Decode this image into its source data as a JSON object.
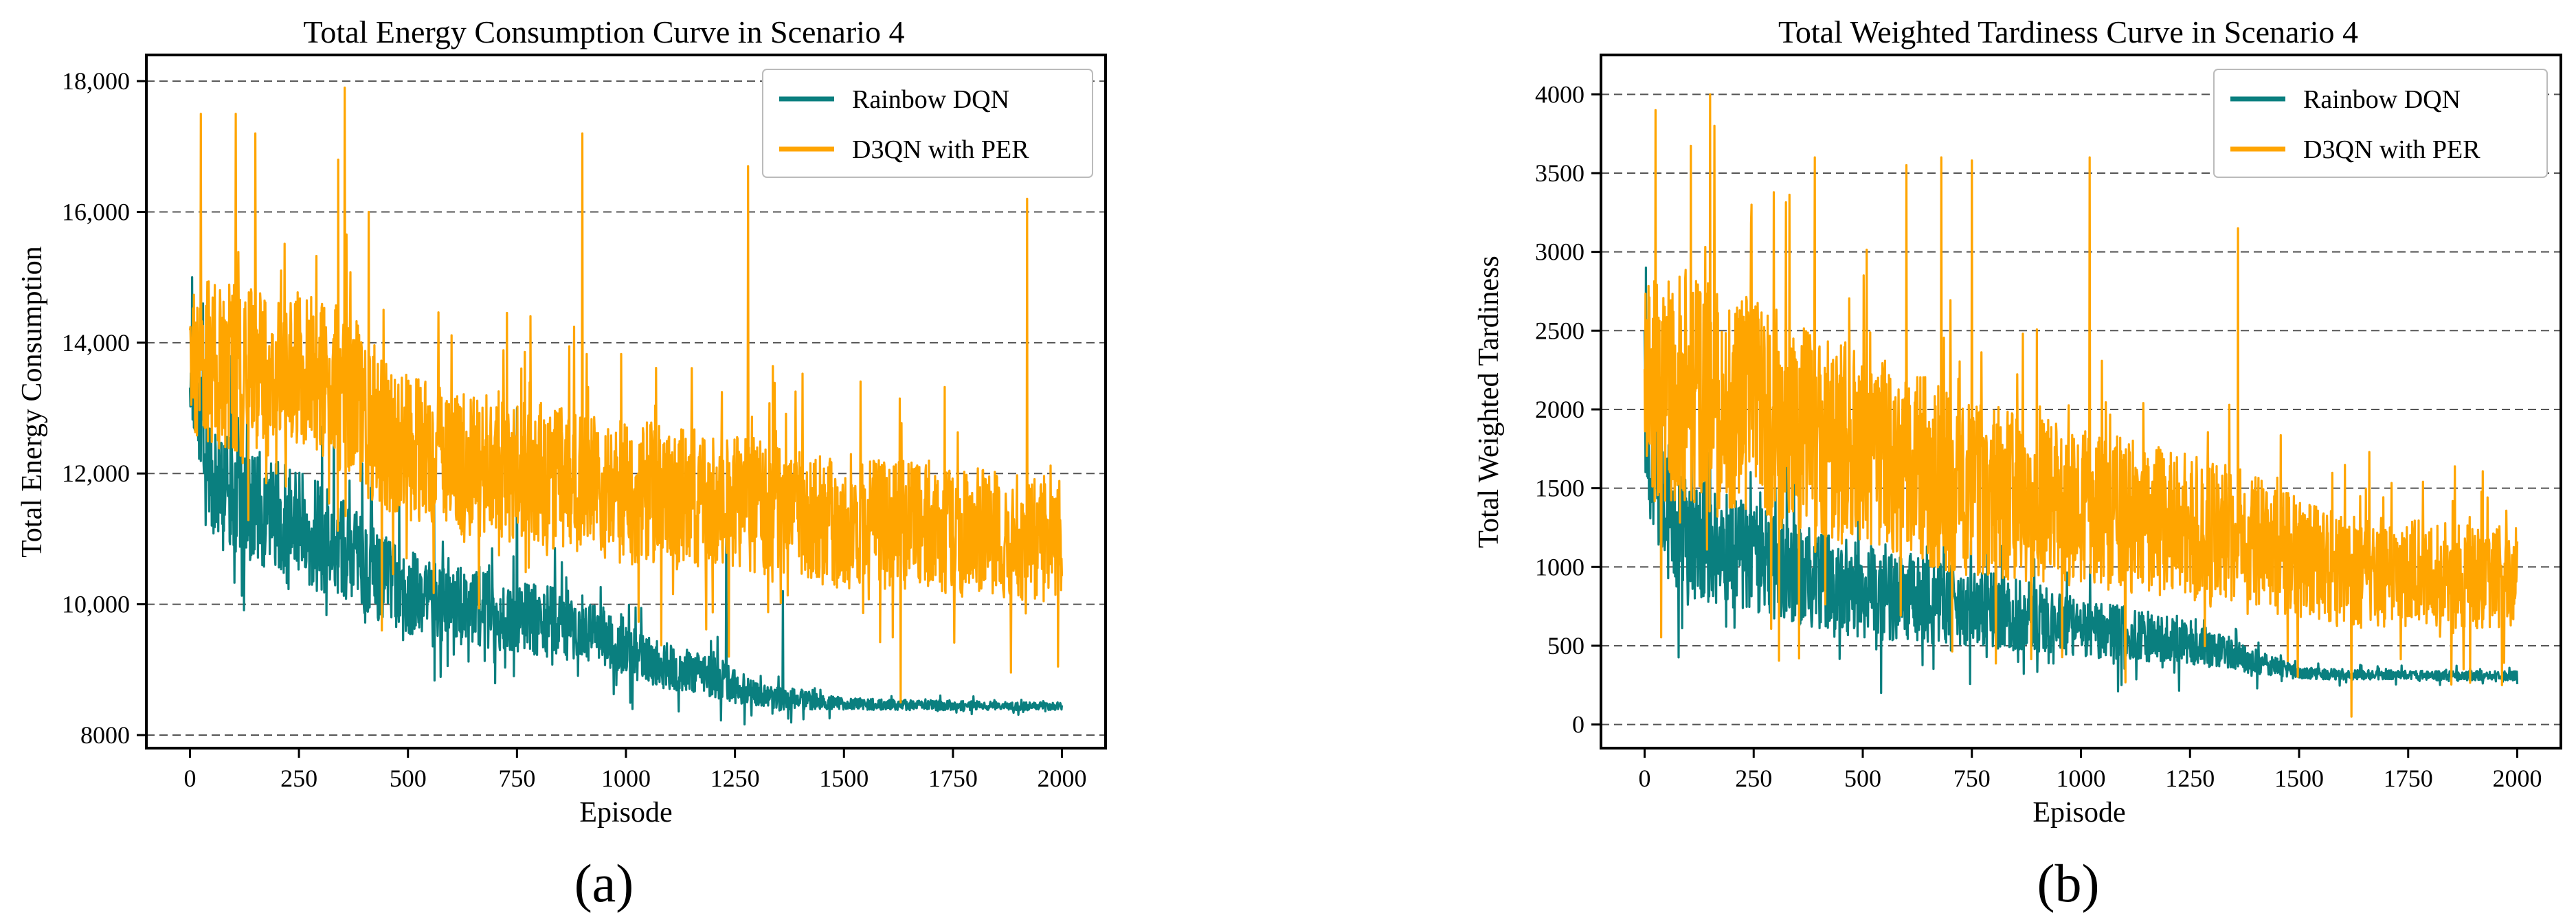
{
  "chart_data": [
    {
      "type": "line",
      "title": "Total Energy Consumption Curve in Scenario 4",
      "xlabel": "Episode",
      "ylabel": "Total Energy Consumption",
      "xlim": [
        -100,
        2100
      ],
      "ylim": [
        7800,
        18400
      ],
      "xticks": [
        0,
        250,
        500,
        750,
        1000,
        1250,
        1500,
        1750,
        2000
      ],
      "xtick_labels": [
        "0",
        "250",
        "500",
        "750",
        "1000",
        "1250",
        "1500",
        "1750",
        "2000"
      ],
      "yticks": [
        8000,
        10000,
        12000,
        14000,
        16000,
        18000
      ],
      "ytick_labels": [
        "8000",
        "10,000",
        "12,000",
        "14,000",
        "16,000",
        "18,000"
      ],
      "grid": "horizontal-dashed",
      "legend_position": "top-right",
      "panel_label": "(a)",
      "series": [
        {
          "name": "Rainbow DQN",
          "color": "#0a7f7f",
          "x": [
            0,
            50,
            100,
            150,
            200,
            250,
            300,
            350,
            400,
            450,
            500,
            550,
            600,
            650,
            700,
            750,
            800,
            850,
            900,
            950,
            1000,
            1050,
            1100,
            1150,
            1200,
            1250,
            1300,
            1350,
            1400,
            1450,
            1500,
            1550,
            1600,
            1650,
            1700,
            1750,
            1800,
            1850,
            1900,
            1950,
            2000
          ],
          "values": [
            13700,
            11900,
            11700,
            11500,
            11300,
            11200,
            11000,
            10900,
            10600,
            10400,
            10200,
            10100,
            10000,
            9950,
            9900,
            9800,
            9750,
            9700,
            9650,
            9500,
            9300,
            9150,
            9050,
            9000,
            8900,
            8750,
            8600,
            8550,
            8550,
            8500,
            8480,
            8470,
            8470,
            8460,
            8460,
            8450,
            8450,
            8450,
            8440,
            8440,
            8440
          ],
          "noise": [
            700,
            800,
            900,
            900,
            900,
            850,
            850,
            800,
            750,
            700,
            650,
            600,
            600,
            600,
            600,
            550,
            550,
            550,
            500,
            450,
            400,
            380,
            360,
            340,
            320,
            280,
            200,
            180,
            150,
            120,
            90,
            90,
            80,
            80,
            80,
            70,
            70,
            70,
            60,
            60,
            60
          ],
          "spikes": [
            {
              "x": 5,
              "y": 15000
            },
            {
              "x": 30,
              "y": 14600
            },
            {
              "x": 95,
              "y": 13800
            },
            {
              "x": 330,
              "y": 13200
            },
            {
              "x": 560,
              "y": 12200
            },
            {
              "x": 750,
              "y": 13000
            },
            {
              "x": 1230,
              "y": 11000
            },
            {
              "x": 1360,
              "y": 10200
            }
          ]
        },
        {
          "name": "D3QN with PER",
          "color": "#ffa500",
          "x": [
            0,
            50,
            100,
            150,
            200,
            250,
            300,
            350,
            400,
            450,
            500,
            550,
            600,
            650,
            700,
            750,
            800,
            850,
            900,
            950,
            1000,
            1050,
            1100,
            1150,
            1200,
            1250,
            1300,
            1350,
            1400,
            1450,
            1500,
            1550,
            1600,
            1650,
            1700,
            1750,
            1800,
            1850,
            1900,
            1950,
            2000
          ],
          "values": [
            13600,
            13700,
            13600,
            13500,
            13400,
            13600,
            13500,
            13300,
            12900,
            12600,
            12400,
            12300,
            12200,
            12100,
            12100,
            12000,
            12000,
            11900,
            11900,
            11800,
            11700,
            11700,
            11600,
            11600,
            11500,
            11500,
            11500,
            11400,
            11400,
            11300,
            11300,
            11300,
            11200,
            11200,
            11200,
            11100,
            11100,
            11100,
            11000,
            11000,
            11000
          ],
          "noise": [
            1100,
            1300,
            1300,
            1300,
            1200,
            1200,
            1200,
            1300,
            1300,
            1200,
            1100,
            1100,
            1100,
            1100,
            1100,
            1100,
            1100,
            1100,
            1100,
            1100,
            1100,
            1100,
            1100,
            1100,
            1100,
            1100,
            1100,
            1100,
            1000,
            1000,
            1000,
            1000,
            1000,
            1000,
            1000,
            1000,
            1000,
            1000,
            1000,
            1000,
            900
          ],
          "spikes": [
            {
              "x": 25,
              "y": 17500
            },
            {
              "x": 105,
              "y": 17500
            },
            {
              "x": 150,
              "y": 17200
            },
            {
              "x": 340,
              "y": 16800
            },
            {
              "x": 355,
              "y": 17900
            },
            {
              "x": 410,
              "y": 16000
            },
            {
              "x": 900,
              "y": 17200
            },
            {
              "x": 1280,
              "y": 16700
            },
            {
              "x": 1920,
              "y": 16200
            },
            {
              "x": 440,
              "y": 9600
            },
            {
              "x": 1630,
              "y": 8500
            }
          ]
        }
      ]
    },
    {
      "type": "line",
      "title": "Total Weighted Tardiness Curve in Scenario 4",
      "xlabel": "Episode",
      "ylabel": "Total Weighted Tardiness",
      "xlim": [
        -100,
        2100
      ],
      "ylim": [
        -150,
        4250
      ],
      "xticks": [
        0,
        250,
        500,
        750,
        1000,
        1250,
        1500,
        1750,
        2000
      ],
      "xtick_labels": [
        "0",
        "250",
        "500",
        "750",
        "1000",
        "1250",
        "1500",
        "1750",
        "2000"
      ],
      "yticks": [
        0,
        500,
        1000,
        1500,
        2000,
        2500,
        3000,
        3500,
        4000
      ],
      "ytick_labels": [
        "0",
        "500",
        "1000",
        "1500",
        "2000",
        "2500",
        "3000",
        "3500",
        "4000"
      ],
      "grid": "horizontal-dashed",
      "legend_position": "top-right",
      "panel_label": "(b)",
      "series": [
        {
          "name": "Rainbow DQN",
          "color": "#0a7f7f",
          "x": [
            0,
            50,
            100,
            150,
            200,
            250,
            300,
            350,
            400,
            450,
            500,
            550,
            600,
            650,
            700,
            750,
            800,
            850,
            900,
            950,
            1000,
            1050,
            1100,
            1150,
            1200,
            1250,
            1300,
            1350,
            1400,
            1450,
            1500,
            1550,
            1600,
            1650,
            1700,
            1750,
            1800,
            1850,
            1900,
            1950,
            2000
          ],
          "values": [
            1900,
            1350,
            1200,
            1150,
            1100,
            1050,
            1000,
            950,
            900,
            870,
            850,
            820,
            800,
            780,
            760,
            740,
            720,
            700,
            680,
            650,
            620,
            600,
            580,
            560,
            540,
            520,
            480,
            440,
            400,
            360,
            330,
            320,
            320,
            315,
            315,
            315,
            310,
            310,
            310,
            310,
            310
          ],
          "noise": [
            500,
            450,
            400,
            380,
            360,
            350,
            340,
            330,
            320,
            310,
            300,
            290,
            280,
            270,
            260,
            250,
            240,
            230,
            220,
            200,
            190,
            180,
            170,
            160,
            150,
            140,
            120,
            100,
            80,
            60,
            40,
            35,
            35,
            30,
            30,
            30,
            30,
            30,
            30,
            30,
            30
          ],
          "spikes": [
            {
              "x": 3,
              "y": 2900
            },
            {
              "x": 30,
              "y": 1800
            },
            {
              "x": 300,
              "y": 1500
            }
          ]
        },
        {
          "name": "D3QN with PER",
          "color": "#ffa500",
          "x": [
            0,
            50,
            100,
            150,
            200,
            250,
            300,
            350,
            400,
            450,
            500,
            550,
            600,
            650,
            700,
            750,
            800,
            850,
            900,
            950,
            1000,
            1050,
            1100,
            1150,
            1200,
            1250,
            1300,
            1350,
            1400,
            1450,
            1500,
            1550,
            1600,
            1650,
            1700,
            1750,
            1800,
            1850,
            1900,
            1950,
            2000
          ],
          "values": [
            2100,
            2150,
            2150,
            2100,
            2050,
            2000,
            1950,
            1900,
            1850,
            1800,
            1750,
            1700,
            1650,
            1600,
            1550,
            1500,
            1480,
            1450,
            1420,
            1400,
            1380,
            1350,
            1330,
            1300,
            1280,
            1250,
            1220,
            1200,
            1180,
            1120,
            1050,
            1000,
            980,
            970,
            960,
            950,
            950,
            940,
            940,
            930,
            930
          ],
          "noise": [
            700,
            750,
            750,
            750,
            700,
            700,
            700,
            700,
            680,
            650,
            650,
            620,
            600,
            600,
            580,
            560,
            550,
            540,
            530,
            520,
            510,
            500,
            490,
            480,
            470,
            460,
            450,
            440,
            420,
            400,
            380,
            370,
            360,
            360,
            350,
            350,
            340,
            340,
            330,
            330,
            320
          ],
          "spikes": [
            {
              "x": 25,
              "y": 3900
            },
            {
              "x": 150,
              "y": 4000
            },
            {
              "x": 160,
              "y": 3800
            },
            {
              "x": 390,
              "y": 3600
            },
            {
              "x": 600,
              "y": 3550
            },
            {
              "x": 680,
              "y": 3600
            },
            {
              "x": 750,
              "y": 3580
            },
            {
              "x": 1020,
              "y": 3600
            },
            {
              "x": 1360,
              "y": 3150
            },
            {
              "x": 1620,
              "y": 50
            }
          ]
        }
      ]
    }
  ]
}
